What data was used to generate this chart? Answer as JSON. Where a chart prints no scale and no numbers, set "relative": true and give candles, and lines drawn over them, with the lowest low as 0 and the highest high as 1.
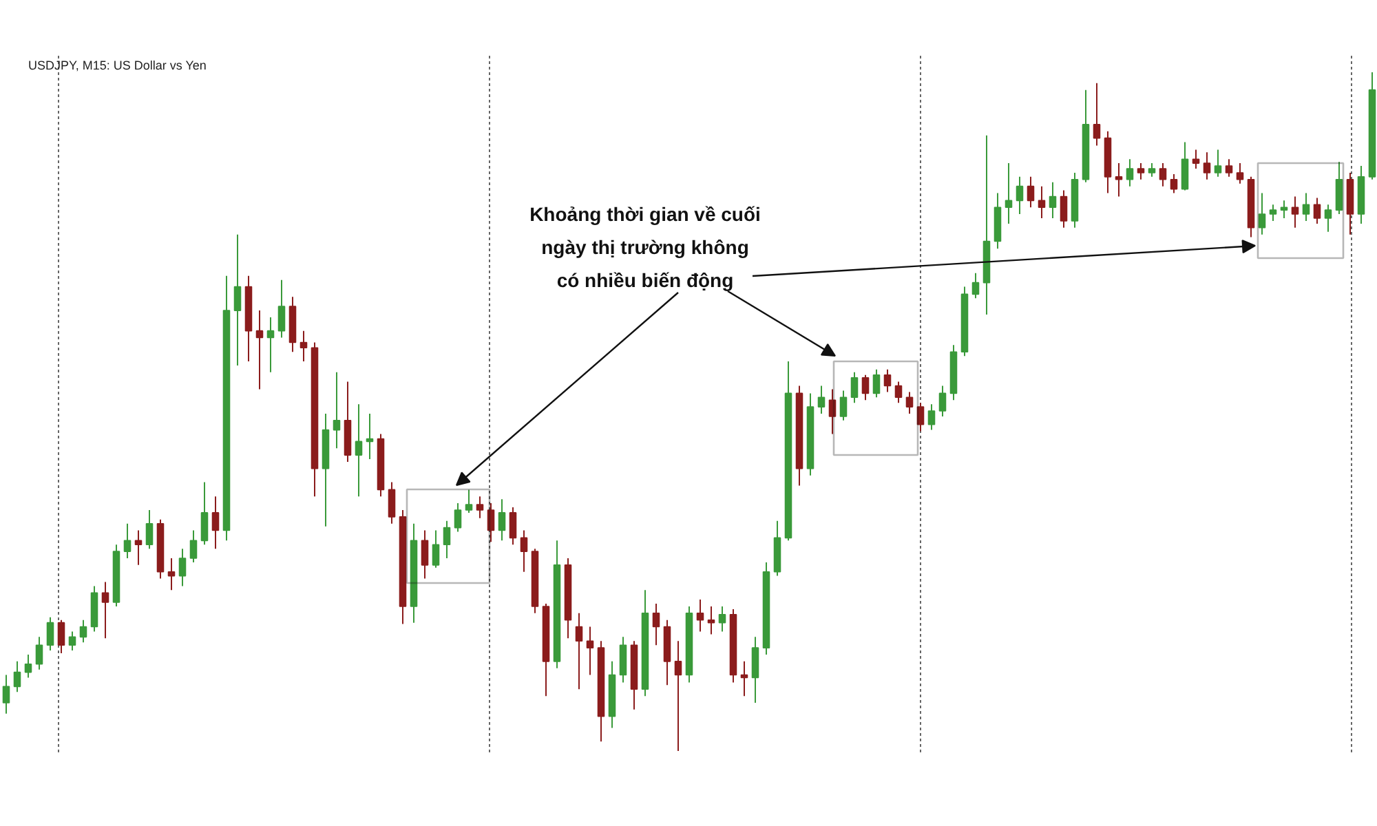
{
  "chart_data": {
    "type": "candlestick",
    "title": "USDJPY, M15: US Dollar vs Yen",
    "relative": true,
    "tick_labels": false,
    "annotations": [
      "Khoảng thời gian về cuối\nngày thị trường không\ncó nhiều biến động"
    ],
    "categories": [
      null,
      null,
      null,
      null,
      null,
      null,
      null,
      null,
      null,
      null,
      null,
      null,
      null,
      null,
      null,
      null,
      null,
      null,
      null,
      null,
      null,
      null,
      null,
      null,
      null,
      null,
      null,
      null,
      null,
      null,
      null,
      null,
      null,
      null,
      null,
      null,
      null,
      null,
      null,
      null,
      null,
      null,
      null,
      null,
      null,
      null,
      null,
      null,
      null,
      null,
      null,
      null,
      null,
      null,
      null,
      null,
      null,
      null,
      null,
      null,
      null,
      null,
      null,
      null,
      null,
      null,
      null,
      null,
      null,
      null,
      null,
      null,
      null,
      null,
      null,
      null,
      null,
      null,
      null,
      null,
      null,
      null,
      null,
      null,
      null,
      null,
      null,
      null,
      null,
      null,
      null,
      null,
      null,
      null,
      null,
      null,
      null,
      null,
      null,
      null,
      null,
      null,
      null,
      null,
      null,
      null,
      null,
      null,
      null,
      null,
      null,
      null,
      null,
      null,
      null,
      null,
      null,
      null,
      null,
      null,
      null,
      null,
      null,
      null,
      null
    ],
    "ohlc": [
      [
        0.071,
        0.112,
        0.055,
        0.095
      ],
      [
        0.095,
        0.132,
        0.087,
        0.116
      ],
      [
        0.116,
        0.142,
        0.108,
        0.128
      ],
      [
        0.128,
        0.168,
        0.12,
        0.156
      ],
      [
        0.156,
        0.197,
        0.148,
        0.189
      ],
      [
        0.189,
        0.193,
        0.144,
        0.156
      ],
      [
        0.156,
        0.176,
        0.148,
        0.168
      ],
      [
        0.168,
        0.193,
        0.16,
        0.183
      ],
      [
        0.183,
        0.243,
        0.176,
        0.233
      ],
      [
        0.233,
        0.249,
        0.166,
        0.219
      ],
      [
        0.219,
        0.304,
        0.213,
        0.294
      ],
      [
        0.294,
        0.335,
        0.284,
        0.31
      ],
      [
        0.31,
        0.325,
        0.274,
        0.304
      ],
      [
        0.304,
        0.355,
        0.298,
        0.335
      ],
      [
        0.335,
        0.341,
        0.254,
        0.264
      ],
      [
        0.264,
        0.284,
        0.237,
        0.258
      ],
      [
        0.258,
        0.298,
        0.243,
        0.284
      ],
      [
        0.284,
        0.325,
        0.278,
        0.31
      ],
      [
        0.31,
        0.396,
        0.304,
        0.351
      ],
      [
        0.351,
        0.375,
        0.298,
        0.325
      ],
      [
        0.325,
        0.7,
        0.31,
        0.649
      ],
      [
        0.649,
        0.761,
        0.568,
        0.684
      ],
      [
        0.684,
        0.7,
        0.574,
        0.619
      ],
      [
        0.619,
        0.649,
        0.533,
        0.609
      ],
      [
        0.609,
        0.639,
        0.558,
        0.619
      ],
      [
        0.619,
        0.694,
        0.609,
        0.655
      ],
      [
        0.655,
        0.669,
        0.588,
        0.602
      ],
      [
        0.602,
        0.619,
        0.574,
        0.594
      ],
      [
        0.594,
        0.602,
        0.375,
        0.416
      ],
      [
        0.416,
        0.497,
        0.331,
        0.473
      ],
      [
        0.473,
        0.558,
        0.446,
        0.487
      ],
      [
        0.487,
        0.544,
        0.426,
        0.436
      ],
      [
        0.436,
        0.511,
        0.375,
        0.456
      ],
      [
        0.456,
        0.497,
        0.43,
        0.46
      ],
      [
        0.46,
        0.467,
        0.375,
        0.385
      ],
      [
        0.385,
        0.396,
        0.335,
        0.345
      ],
      [
        0.345,
        0.355,
        0.187,
        0.213
      ],
      [
        0.213,
        0.335,
        0.189,
        0.31
      ],
      [
        0.31,
        0.325,
        0.254,
        0.274
      ],
      [
        0.274,
        0.325,
        0.27,
        0.304
      ],
      [
        0.304,
        0.339,
        0.284,
        0.329
      ],
      [
        0.329,
        0.365,
        0.323,
        0.355
      ],
      [
        0.355,
        0.385,
        0.351,
        0.363
      ],
      [
        0.363,
        0.375,
        0.343,
        0.355
      ],
      [
        0.355,
        0.365,
        0.308,
        0.325
      ],
      [
        0.325,
        0.371,
        0.31,
        0.351
      ],
      [
        0.351,
        0.359,
        0.304,
        0.314
      ],
      [
        0.314,
        0.325,
        0.264,
        0.294
      ],
      [
        0.294,
        0.298,
        0.203,
        0.213
      ],
      [
        0.213,
        0.217,
        0.081,
        0.132
      ],
      [
        0.132,
        0.31,
        0.122,
        0.274
      ],
      [
        0.274,
        0.284,
        0.166,
        0.193
      ],
      [
        0.183,
        0.203,
        0.091,
        0.162
      ],
      [
        0.162,
        0.183,
        0.112,
        0.152
      ],
      [
        0.152,
        0.162,
        0.014,
        0.051
      ],
      [
        0.051,
        0.132,
        0.034,
        0.112
      ],
      [
        0.112,
        0.168,
        0.101,
        0.156
      ],
      [
        0.156,
        0.162,
        0.061,
        0.091
      ],
      [
        0.091,
        0.237,
        0.081,
        0.203
      ],
      [
        0.203,
        0.217,
        0.156,
        0.183
      ],
      [
        0.183,
        0.193,
        0.097,
        0.132
      ],
      [
        0.132,
        0.162,
        0,
        0.112
      ],
      [
        0.112,
        0.213,
        0.101,
        0.203
      ],
      [
        0.203,
        0.223,
        0.176,
        0.193
      ],
      [
        0.193,
        0.213,
        0.172,
        0.189
      ],
      [
        0.189,
        0.213,
        0.176,
        0.201
      ],
      [
        0.201,
        0.209,
        0.101,
        0.112
      ],
      [
        0.112,
        0.132,
        0.081,
        0.108
      ],
      [
        0.108,
        0.168,
        0.071,
        0.152
      ],
      [
        0.152,
        0.278,
        0.142,
        0.264
      ],
      [
        0.264,
        0.339,
        0.258,
        0.314
      ],
      [
        0.314,
        0.574,
        0.31,
        0.527
      ],
      [
        0.527,
        0.538,
        0.391,
        0.416
      ],
      [
        0.416,
        0.527,
        0.406,
        0.507
      ],
      [
        0.507,
        0.538,
        0.497,
        0.521
      ],
      [
        0.517,
        0.533,
        0.467,
        0.493
      ],
      [
        0.493,
        0.531,
        0.487,
        0.521
      ],
      [
        0.521,
        0.558,
        0.513,
        0.55
      ],
      [
        0.55,
        0.554,
        0.517,
        0.527
      ],
      [
        0.527,
        0.562,
        0.521,
        0.554
      ],
      [
        0.554,
        0.562,
        0.529,
        0.538
      ],
      [
        0.538,
        0.544,
        0.513,
        0.521
      ],
      [
        0.521,
        0.529,
        0.497,
        0.507
      ],
      [
        0.507,
        0.513,
        0.471,
        0.481
      ],
      [
        0.481,
        0.511,
        0.473,
        0.501
      ],
      [
        0.501,
        0.538,
        0.493,
        0.527
      ],
      [
        0.527,
        0.598,
        0.517,
        0.588
      ],
      [
        0.588,
        0.684,
        0.582,
        0.673
      ],
      [
        0.673,
        0.704,
        0.667,
        0.69
      ],
      [
        0.69,
        0.907,
        0.643,
        0.751
      ],
      [
        0.751,
        0.822,
        0.74,
        0.801
      ],
      [
        0.801,
        0.866,
        0.777,
        0.811
      ],
      [
        0.811,
        0.846,
        0.791,
        0.832
      ],
      [
        0.832,
        0.846,
        0.801,
        0.811
      ],
      [
        0.811,
        0.832,
        0.785,
        0.801
      ],
      [
        0.801,
        0.838,
        0.785,
        0.817
      ],
      [
        0.817,
        0.826,
        0.771,
        0.781
      ],
      [
        0.781,
        0.852,
        0.771,
        0.842
      ],
      [
        0.842,
        0.974,
        0.838,
        0.923
      ],
      [
        0.923,
        0.984,
        0.892,
        0.903
      ],
      [
        0.903,
        0.913,
        0.822,
        0.846
      ],
      [
        0.846,
        0.866,
        0.817,
        0.842
      ],
      [
        0.842,
        0.872,
        0.832,
        0.858
      ],
      [
        0.858,
        0.866,
        0.842,
        0.852
      ],
      [
        0.852,
        0.866,
        0.846,
        0.858
      ],
      [
        0.858,
        0.866,
        0.832,
        0.842
      ],
      [
        0.842,
        0.85,
        0.822,
        0.828
      ],
      [
        0.828,
        0.897,
        0.826,
        0.872
      ],
      [
        0.872,
        0.886,
        0.858,
        0.866
      ],
      [
        0.866,
        0.882,
        0.842,
        0.852
      ],
      [
        0.852,
        0.886,
        0.846,
        0.862
      ],
      [
        0.862,
        0.872,
        0.846,
        0.852
      ],
      [
        0.852,
        0.866,
        0.836,
        0.842
      ],
      [
        0.842,
        0.846,
        0.757,
        0.771
      ],
      [
        0.771,
        0.822,
        0.761,
        0.791
      ],
      [
        0.791,
        0.805,
        0.781,
        0.797
      ],
      [
        0.797,
        0.811,
        0.785,
        0.801
      ],
      [
        0.801,
        0.817,
        0.771,
        0.791
      ],
      [
        0.791,
        0.822,
        0.781,
        0.805
      ],
      [
        0.805,
        0.815,
        0.777,
        0.785
      ],
      [
        0.785,
        0.805,
        0.765,
        0.797
      ],
      [
        0.797,
        0.868,
        0.791,
        0.842
      ],
      [
        0.842,
        0.852,
        0.761,
        0.791
      ],
      [
        0.791,
        0.862,
        0.777,
        0.846
      ],
      [
        0.846,
        1,
        0.842,
        0.974
      ]
    ],
    "colors": [
      "#3a9a3a",
      "#3a9a3a",
      "#3a9a3a",
      "#3a9a3a",
      "#3a9a3a",
      "#8b1c1c",
      "#3a9a3a",
      "#3a9a3a",
      "#3a9a3a",
      "#8b1c1c",
      "#3a9a3a",
      "#3a9a3a",
      "#8b1c1c",
      "#3a9a3a",
      "#8b1c1c",
      "#8b1c1c",
      "#3a9a3a",
      "#3a9a3a",
      "#3a9a3a",
      "#8b1c1c",
      "#3a9a3a",
      "#3a9a3a",
      "#8b1c1c",
      "#8b1c1c",
      "#3a9a3a",
      "#3a9a3a",
      "#8b1c1c",
      "#8b1c1c",
      "#8b1c1c",
      "#3a9a3a",
      "#3a9a3a",
      "#8b1c1c",
      "#3a9a3a",
      "#3a9a3a",
      "#8b1c1c",
      "#8b1c1c",
      "#8b1c1c",
      "#3a9a3a",
      "#8b1c1c",
      "#3a9a3a",
      "#3a9a3a",
      "#3a9a3a",
      "#3a9a3a",
      "#8b1c1c",
      "#8b1c1c",
      "#3a9a3a",
      "#8b1c1c",
      "#8b1c1c",
      "#8b1c1c",
      "#8b1c1c",
      "#3a9a3a",
      "#8b1c1c",
      "#8b1c1c",
      "#8b1c1c",
      "#8b1c1c",
      "#3a9a3a",
      "#3a9a3a",
      "#8b1c1c",
      "#3a9a3a",
      "#8b1c1c",
      "#8b1c1c",
      "#8b1c1c",
      "#3a9a3a",
      "#8b1c1c",
      "#8b1c1c",
      "#3a9a3a",
      "#8b1c1c",
      "#8b1c1c",
      "#3a9a3a",
      "#3a9a3a",
      "#3a9a3a",
      "#3a9a3a",
      "#8b1c1c",
      "#3a9a3a",
      "#3a9a3a",
      "#8b1c1c",
      "#3a9a3a",
      "#3a9a3a",
      "#8b1c1c",
      "#3a9a3a",
      "#8b1c1c",
      "#8b1c1c",
      "#8b1c1c",
      "#8b1c1c",
      "#3a9a3a",
      "#3a9a3a",
      "#3a9a3a",
      "#3a9a3a",
      "#3a9a3a",
      "#3a9a3a",
      "#3a9a3a",
      "#3a9a3a",
      "#3a9a3a",
      "#8b1c1c",
      "#8b1c1c",
      "#3a9a3a",
      "#8b1c1c",
      "#3a9a3a",
      "#3a9a3a",
      "#8b1c1c",
      "#8b1c1c",
      "#8b1c1c",
      "#3a9a3a",
      "#8b1c1c",
      "#3a9a3a",
      "#8b1c1c",
      "#8b1c1c",
      "#3a9a3a",
      "#8b1c1c",
      "#8b1c1c",
      "#3a9a3a",
      "#8b1c1c",
      "#8b1c1c",
      "#8b1c1c",
      "#3a9a3a",
      "#3a9a3a",
      "#3a9a3a",
      "#8b1c1c",
      "#3a9a3a",
      "#8b1c1c",
      "#3a9a3a",
      "#3a9a3a",
      "#8b1c1c",
      "#3a9a3a",
      "#3a9a3a"
    ]
  }
}
